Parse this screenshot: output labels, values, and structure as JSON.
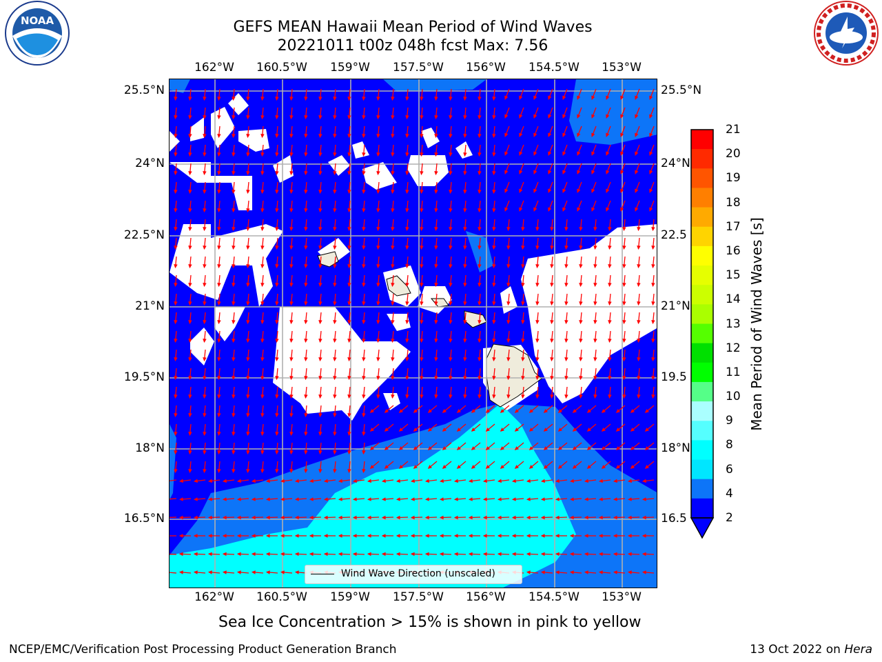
{
  "title": {
    "line1": "GEFS MEAN Hawaii Mean Period of Wind Waves",
    "line2": "20221011 t00z 048h fcst   Max: 7.56"
  },
  "logos": {
    "left": "noaa-logo",
    "left_text": "NOAA",
    "right": "nws-logo",
    "right_text": "NATIONAL WEATHER SERVICE"
  },
  "map": {
    "lon_ticks": [
      "162°W",
      "160.5°W",
      "159°W",
      "157.5°W",
      "156°W",
      "154.5°W",
      "153°W"
    ],
    "lat_ticks": [
      "25.5°N",
      "24°N",
      "22.5°N",
      "21°N",
      "19.5°N",
      "18°N",
      "16.5°N"
    ],
    "lat_ticks_right": [
      "25.5°N",
      "24°N",
      "22.5",
      "21°N",
      "19.5",
      "18°N",
      "16.5"
    ],
    "legend": "Wind Wave Direction (unscaled)",
    "colors": {
      "ocean_low": "#0000ff",
      "band_2_4": "#0d75f8",
      "band_4_6": "#00ffff",
      "land": "#efecdc",
      "arrow": "#ff0000",
      "grid": "#b0b0b0"
    }
  },
  "colorbar": {
    "label": "Mean Period of Wind Waves [s]",
    "tick_labels": [
      "21",
      "20",
      "19",
      "18",
      "17",
      "16",
      "15",
      "14",
      "13",
      "12",
      "11",
      "10",
      "9",
      "8",
      "6",
      "4",
      "2"
    ],
    "colors": [
      "#ff0000",
      "#ff2a00",
      "#ff5500",
      "#ff7f00",
      "#ffaa00",
      "#ffd400",
      "#ffff00",
      "#e6ff00",
      "#ccff00",
      "#aaff00",
      "#55ff00",
      "#00e000",
      "#00ff00",
      "#55ff88",
      "#aaffff",
      "#55ffff",
      "#00ffff",
      "#00e6ff",
      "#0d75f8",
      "#0000ff"
    ]
  },
  "footnote": "Sea Ice Concentration > 15% is shown in pink to yellow",
  "credit_left": "NCEP/EMC/Verification Post Processing Product Generation Branch",
  "credit_right_date": "13 Oct 2022 on",
  "credit_right_host": "Hera"
}
